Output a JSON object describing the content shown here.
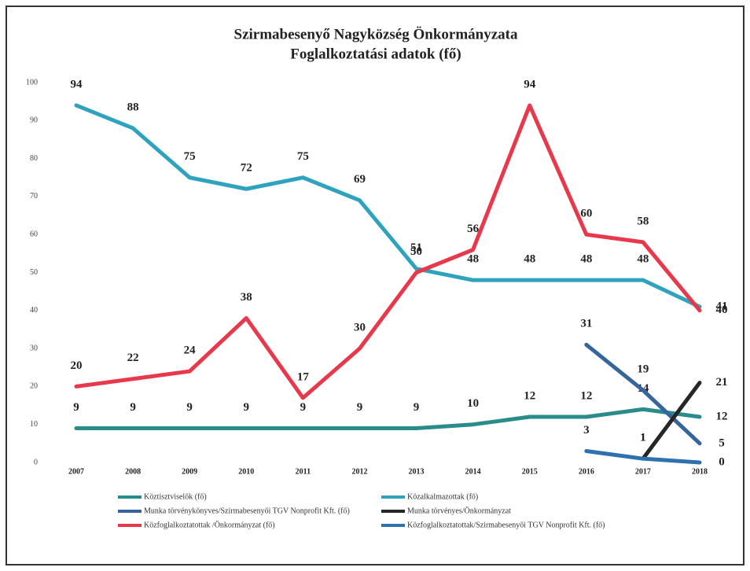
{
  "chart_data": {
    "type": "line",
    "title": [
      "Szirmabesenyő  Nagyközség Önkormányzata",
      "Foglalkoztatási adatok (fő)"
    ],
    "categories": [
      "2007",
      "2008",
      "2009",
      "2010",
      "2011",
      "2012",
      "2013",
      "2014",
      "2015",
      "2016",
      "2017",
      "2018"
    ],
    "ylim": [
      0,
      100
    ],
    "yticks": [
      0,
      10,
      20,
      30,
      40,
      50,
      60,
      70,
      80,
      90,
      100
    ],
    "series": [
      {
        "name": "Köztisztviselők (fő)",
        "color": "#2a8c8a",
        "values": [
          9,
          9,
          9,
          9,
          9,
          9,
          9,
          10,
          12,
          12,
          14,
          12
        ]
      },
      {
        "name": "Közalkalmazottak (fő)",
        "color": "#2fa3bd",
        "values": [
          94,
          88,
          75,
          72,
          75,
          69,
          51,
          48,
          48,
          48,
          48,
          41
        ]
      },
      {
        "name": "Munka törvénykönyves/Szirmabesenyői TGV Nonprofit Kft. (fő)",
        "color": "#35659a",
        "values": [
          null,
          null,
          null,
          null,
          null,
          null,
          null,
          null,
          null,
          31,
          19,
          5
        ]
      },
      {
        "name": "Munka törvényes/Önkormányzat",
        "color": "#262626",
        "values": [
          null,
          null,
          null,
          null,
          null,
          null,
          null,
          null,
          null,
          null,
          1,
          21
        ]
      },
      {
        "name": "Közfoglalkoztatottak /Önkormányzat (fő)",
        "color": "#e8384c",
        "values": [
          20,
          22,
          24,
          38,
          17,
          30,
          50,
          56,
          94,
          60,
          58,
          40
        ]
      },
      {
        "name": "Közfoglalkoztatottak/Szirmabesenyői TGV Nonprofit Kft. (fő)",
        "color": "#2d72ae",
        "values": [
          null,
          null,
          null,
          null,
          null,
          null,
          null,
          null,
          null,
          3,
          1,
          0
        ]
      }
    ]
  }
}
